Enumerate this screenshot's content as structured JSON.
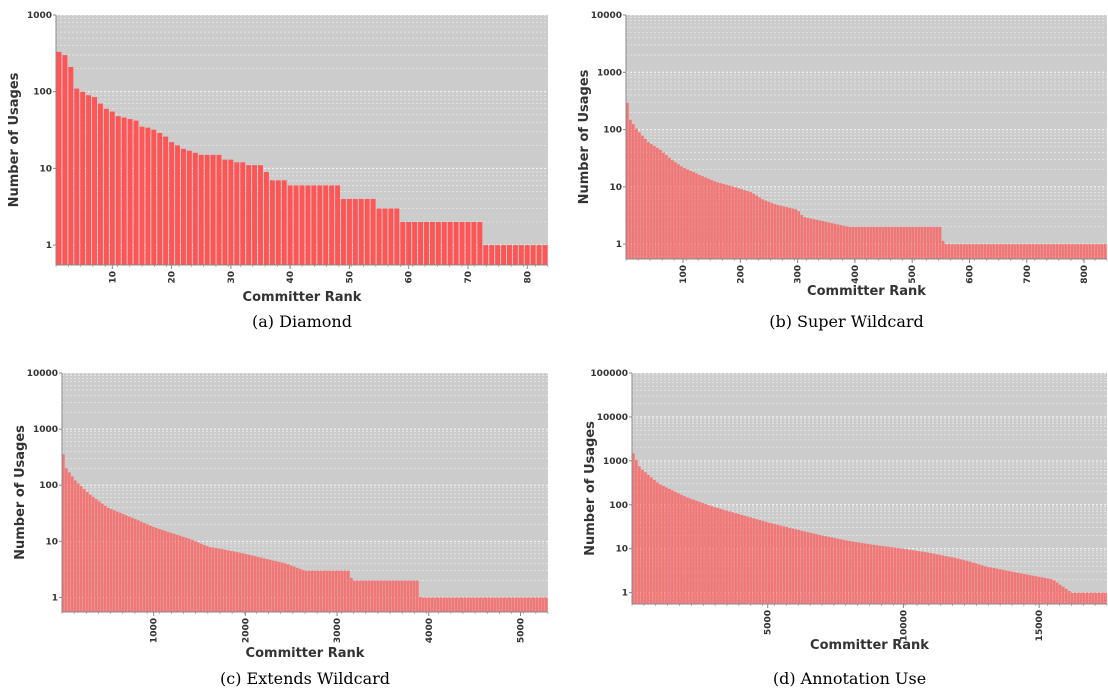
{
  "colors": {
    "plot_background": "#cccccc",
    "bar": "#ff5555",
    "gridline": "#ffffff",
    "axis": "#888888",
    "tick_text": "#333333"
  },
  "chart_data": [
    {
      "type": "bar",
      "caption": "(a) Diamond",
      "xlabel": "Committer Rank",
      "ylabel": "Number of Usages",
      "log_y": true,
      "ylim": [
        0.55,
        1000
      ],
      "yticks": [
        1,
        10,
        100,
        1000
      ],
      "ytick_labels": [
        "1",
        "10",
        "100",
        "1000"
      ],
      "xlim": [
        0.5,
        83.5
      ],
      "xticks": [
        10,
        20,
        30,
        40,
        50,
        60,
        70,
        80
      ],
      "xtick_labels": [
        "10",
        "20",
        "30",
        "40",
        "50",
        "60",
        "70",
        "80"
      ],
      "grid": true,
      "n_bars": 83,
      "values": [
        330,
        300,
        210,
        110,
        100,
        90,
        85,
        70,
        60,
        55,
        48,
        46,
        44,
        42,
        35,
        34,
        32,
        29,
        26,
        22,
        20,
        18,
        17,
        16,
        15,
        15,
        15,
        15,
        13,
        13,
        12,
        12,
        11,
        11,
        11,
        9,
        7,
        7,
        7,
        6,
        6,
        6,
        6,
        6,
        6,
        6,
        6,
        6,
        4,
        4,
        4,
        4,
        4,
        4,
        3,
        3,
        3,
        3,
        2,
        2,
        2,
        2,
        2,
        2,
        2,
        2,
        2,
        2,
        2,
        2,
        2,
        2,
        1,
        1,
        1,
        1,
        1,
        1,
        1,
        1,
        1,
        1,
        1
      ]
    },
    {
      "type": "bar",
      "caption": "(b) Super Wildcard",
      "xlabel": "Committer Rank",
      "ylabel": "Number of Usages",
      "log_y": true,
      "ylim": [
        0.55,
        10000
      ],
      "yticks": [
        1,
        10,
        100,
        1000,
        10000
      ],
      "ytick_labels": [
        "1",
        "10",
        "100",
        "1000",
        "10000"
      ],
      "xlim": [
        0.5,
        840
      ],
      "xticks": [
        100,
        200,
        300,
        400,
        500,
        600,
        700,
        800
      ],
      "xtick_labels": [
        "100",
        "200",
        "300",
        "400",
        "500",
        "600",
        "700",
        "800"
      ],
      "grid": true,
      "n_bars": 840,
      "curve": [
        [
          1,
          900
        ],
        [
          3,
          300
        ],
        [
          8,
          150
        ],
        [
          20,
          100
        ],
        [
          40,
          60
        ],
        [
          60,
          45
        ],
        [
          80,
          30
        ],
        [
          100,
          22
        ],
        [
          130,
          16
        ],
        [
          160,
          12
        ],
        [
          190,
          10
        ],
        [
          220,
          8
        ],
        [
          240,
          6
        ],
        [
          260,
          5
        ],
        [
          300,
          4
        ],
        [
          310,
          3
        ],
        [
          390,
          2
        ],
        [
          550,
          2
        ],
        [
          555,
          1
        ],
        [
          840,
          1
        ]
      ]
    },
    {
      "type": "bar",
      "caption": "(c) Extends Wildcard",
      "xlabel": "Committer Rank",
      "ylabel": "Number of Usages",
      "log_y": true,
      "ylim": [
        0.55,
        10000
      ],
      "yticks": [
        1,
        10,
        100,
        1000,
        10000
      ],
      "ytick_labels": [
        "1",
        "10",
        "100",
        "1000",
        "10000"
      ],
      "xlim": [
        0.5,
        5300
      ],
      "xticks": [
        1000,
        2000,
        3000,
        4000,
        5000
      ],
      "xtick_labels": [
        "1000",
        "2000",
        "3000",
        "4000",
        "5000"
      ],
      "grid": true,
      "n_bars": 5300,
      "curve": [
        [
          1,
          800
        ],
        [
          10,
          400
        ],
        [
          50,
          200
        ],
        [
          150,
          120
        ],
        [
          300,
          70
        ],
        [
          500,
          40
        ],
        [
          800,
          25
        ],
        [
          1000,
          18
        ],
        [
          1200,
          14
        ],
        [
          1400,
          11
        ],
        [
          1600,
          8
        ],
        [
          1800,
          7
        ],
        [
          2000,
          6
        ],
        [
          2200,
          5
        ],
        [
          2450,
          4
        ],
        [
          2650,
          3
        ],
        [
          3150,
          3
        ],
        [
          3160,
          2
        ],
        [
          3900,
          2
        ],
        [
          3910,
          1
        ],
        [
          5300,
          1
        ]
      ]
    },
    {
      "type": "bar",
      "caption": "(d) Annotation Use",
      "xlabel": "Committer Rank",
      "ylabel": "Number of Usages",
      "log_y": true,
      "ylim": [
        0.55,
        100000
      ],
      "yticks": [
        1,
        10,
        100,
        1000,
        10000,
        100000
      ],
      "ytick_labels": [
        "1",
        "10",
        "100",
        "1000",
        "10000",
        "100000"
      ],
      "xlim": [
        0.5,
        17500
      ],
      "xticks": [
        5000,
        10000,
        15000
      ],
      "xtick_labels": [
        "5000",
        "10000",
        "15000"
      ],
      "grid": true,
      "n_bars": 17500,
      "curve": [
        [
          1,
          3000
        ],
        [
          50,
          1500
        ],
        [
          300,
          700
        ],
        [
          1000,
          300
        ],
        [
          2000,
          150
        ],
        [
          3000,
          90
        ],
        [
          4000,
          60
        ],
        [
          5000,
          40
        ],
        [
          6000,
          28
        ],
        [
          7000,
          20
        ],
        [
          8000,
          15
        ],
        [
          9000,
          12
        ],
        [
          10000,
          10
        ],
        [
          11000,
          8
        ],
        [
          12000,
          6
        ],
        [
          12500,
          5
        ],
        [
          13000,
          4
        ],
        [
          14000,
          3
        ],
        [
          15500,
          2
        ],
        [
          16200,
          1
        ],
        [
          17500,
          1
        ]
      ]
    }
  ]
}
